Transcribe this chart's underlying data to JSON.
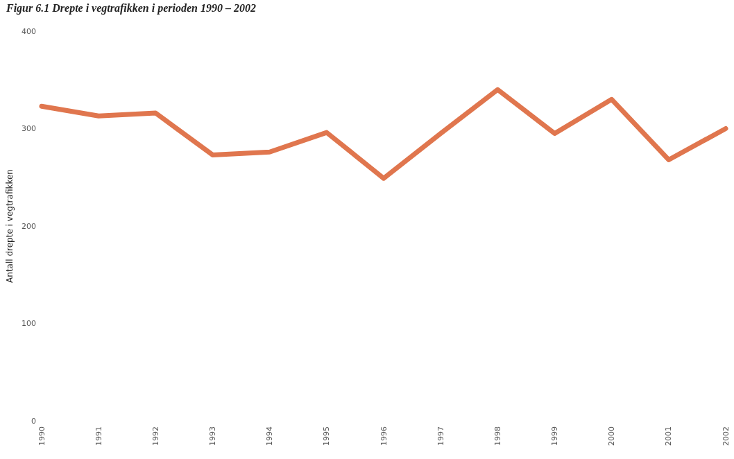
{
  "chart_data": {
    "type": "line",
    "title": "Figur 6.1 Drepte i vegtrafikken i perioden 1990 – 2002",
    "ylabel": "Antall drepte i vegtrafikken",
    "categories": [
      "1990",
      "1991",
      "1992",
      "1993",
      "1994",
      "1995",
      "1996",
      "1997",
      "1998",
      "1999",
      "2000",
      "2001",
      "2002"
    ],
    "series": [
      {
        "color": "#e0764e",
        "values": [
          323,
          313,
          316,
          273,
          276,
          296,
          249,
          295,
          340,
          295,
          330,
          268,
          300
        ]
      }
    ],
    "ylim": [
      0,
      400
    ],
    "yticks": [
      0,
      100,
      200,
      300,
      400
    ],
    "grid": false,
    "marker": "none",
    "line_style": "solid"
  }
}
